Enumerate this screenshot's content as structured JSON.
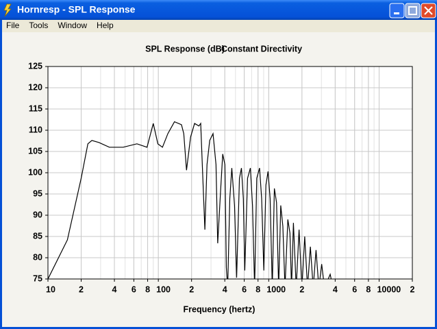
{
  "window": {
    "title": "Hornresp - SPL Response",
    "menu": [
      "File",
      "Tools",
      "Window",
      "Help"
    ]
  },
  "chart_data": {
    "type": "line",
    "title": "SPL Response (dB)",
    "subtitle": "Constant Directivity",
    "x_label": "Frequency (hertz)",
    "xscale": "log",
    "grid": true,
    "xlim": [
      10,
      20000
    ],
    "ylim": [
      75,
      125
    ],
    "xticks": [
      10,
      {
        "value": 20,
        "label": "2"
      },
      {
        "value": 40,
        "label": "4"
      },
      {
        "value": 60,
        "label": "6"
      },
      {
        "value": 80,
        "label": "8"
      },
      100,
      {
        "value": 200,
        "label": "2"
      },
      {
        "value": 400,
        "label": "4"
      },
      {
        "value": 600,
        "label": "6"
      },
      {
        "value": 800,
        "label": "8"
      },
      1000,
      {
        "value": 2000,
        "label": "2"
      },
      {
        "value": 4000,
        "label": "4"
      },
      {
        "value": 6000,
        "label": "6"
      },
      {
        "value": 8000,
        "label": "8"
      },
      10000,
      {
        "value": 20000,
        "label": "2"
      }
    ],
    "yticks": [
      75,
      80,
      85,
      90,
      95,
      100,
      105,
      110,
      115,
      120,
      125
    ],
    "series": [
      {
        "name": "SPL",
        "color": "#000000",
        "x": [
          10,
          15,
          20,
          23,
          25,
          29,
          36,
          48,
          64,
          79,
          90,
          99,
          109,
          122,
          140,
          162,
          170,
          180,
          196,
          213,
          233,
          242,
          253,
          264,
          276,
          292,
          313,
          333,
          345,
          366,
          383,
          401,
          413,
          425,
          444,
          463,
          490,
          512,
          543,
          566,
          589,
          607,
          643,
          682,
          713,
          745,
          779,
          826,
          863,
          903,
          943,
          986,
          1030,
          1077,
          1125,
          1177,
          1230,
          1285,
          1343,
          1404,
          1490,
          1557,
          1609,
          1674,
          1774,
          1883,
          1998,
          2119,
          2247,
          2384,
          2529,
          2683,
          2846,
          3018,
          3201,
          3604,
          3822
        ],
        "values": [
          75,
          84.2,
          98.7,
          106.8,
          107.6,
          107.1,
          106,
          106,
          106.8,
          106,
          111.6,
          106.8,
          106,
          109.2,
          112,
          111.3,
          109.2,
          100.6,
          108.4,
          111.6,
          111,
          111.6,
          98.7,
          86.6,
          101.9,
          107.6,
          109.2,
          101.9,
          83.4,
          95.5,
          104.4,
          101.9,
          77.7,
          72.9,
          93.9,
          101.1,
          92.3,
          75.3,
          98.7,
          101.1,
          93.9,
          77,
          98.7,
          101.1,
          92.3,
          72.9,
          98.7,
          101.1,
          93.9,
          77,
          97.1,
          100.3,
          93.9,
          72.9,
          96.3,
          93,
          72.9,
          92.3,
          87.4,
          72.9,
          89,
          85.8,
          72.9,
          88.2,
          72.9,
          86.6,
          72.9,
          85,
          72.9,
          82.6,
          72.9,
          81.8,
          72.9,
          78.5,
          72.9,
          76.1,
          72.9
        ]
      }
    ]
  }
}
